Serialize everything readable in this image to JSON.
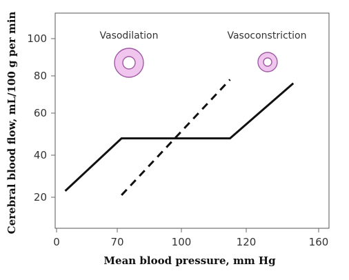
{
  "chart_data": {
    "type": "line",
    "xlabel": "Mean blood pressure, mm Hg",
    "ylabel": "Cerebral blood flow, mL/100 g per min",
    "xticks": [
      {
        "value": 0,
        "label": "0"
      },
      {
        "value": 70,
        "label": "70"
      },
      {
        "value": 100,
        "label": "100"
      },
      {
        "value": 120,
        "label": "120"
      },
      {
        "value": 160,
        "label": "160"
      }
    ],
    "yticks": [
      20,
      40,
      60,
      80,
      100
    ],
    "grid": false,
    "series": [
      {
        "style": "solid",
        "points": [
          [
            10,
            23
          ],
          [
            72,
            48
          ],
          [
            115,
            48
          ],
          [
            146,
            76
          ]
        ]
      },
      {
        "style": "dashed",
        "points": [
          [
            72,
            21
          ],
          [
            115,
            78
          ]
        ]
      }
    ],
    "annotations": [
      {
        "label": "Vasodilation",
        "icon": "large-ring-icon"
      },
      {
        "label": "Vasoconstriction",
        "icon": "small-ring-icon"
      }
    ],
    "colors": {
      "line": "#111111",
      "ring_fill": "#f0c6ee",
      "ring_stroke": "#a05aa4",
      "axis": "#666666"
    }
  }
}
